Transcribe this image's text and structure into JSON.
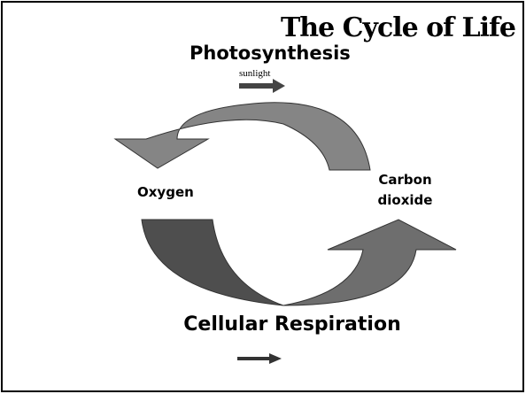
{
  "title": "The Cycle of Life",
  "top_process": {
    "label": "Photosynthesis",
    "input": "sunlight"
  },
  "bottom_process": {
    "label": "Cellular Respiration"
  },
  "nodes": [
    {
      "label": "Oxygen"
    },
    {
      "label": "Carbon dioxide"
    }
  ]
}
